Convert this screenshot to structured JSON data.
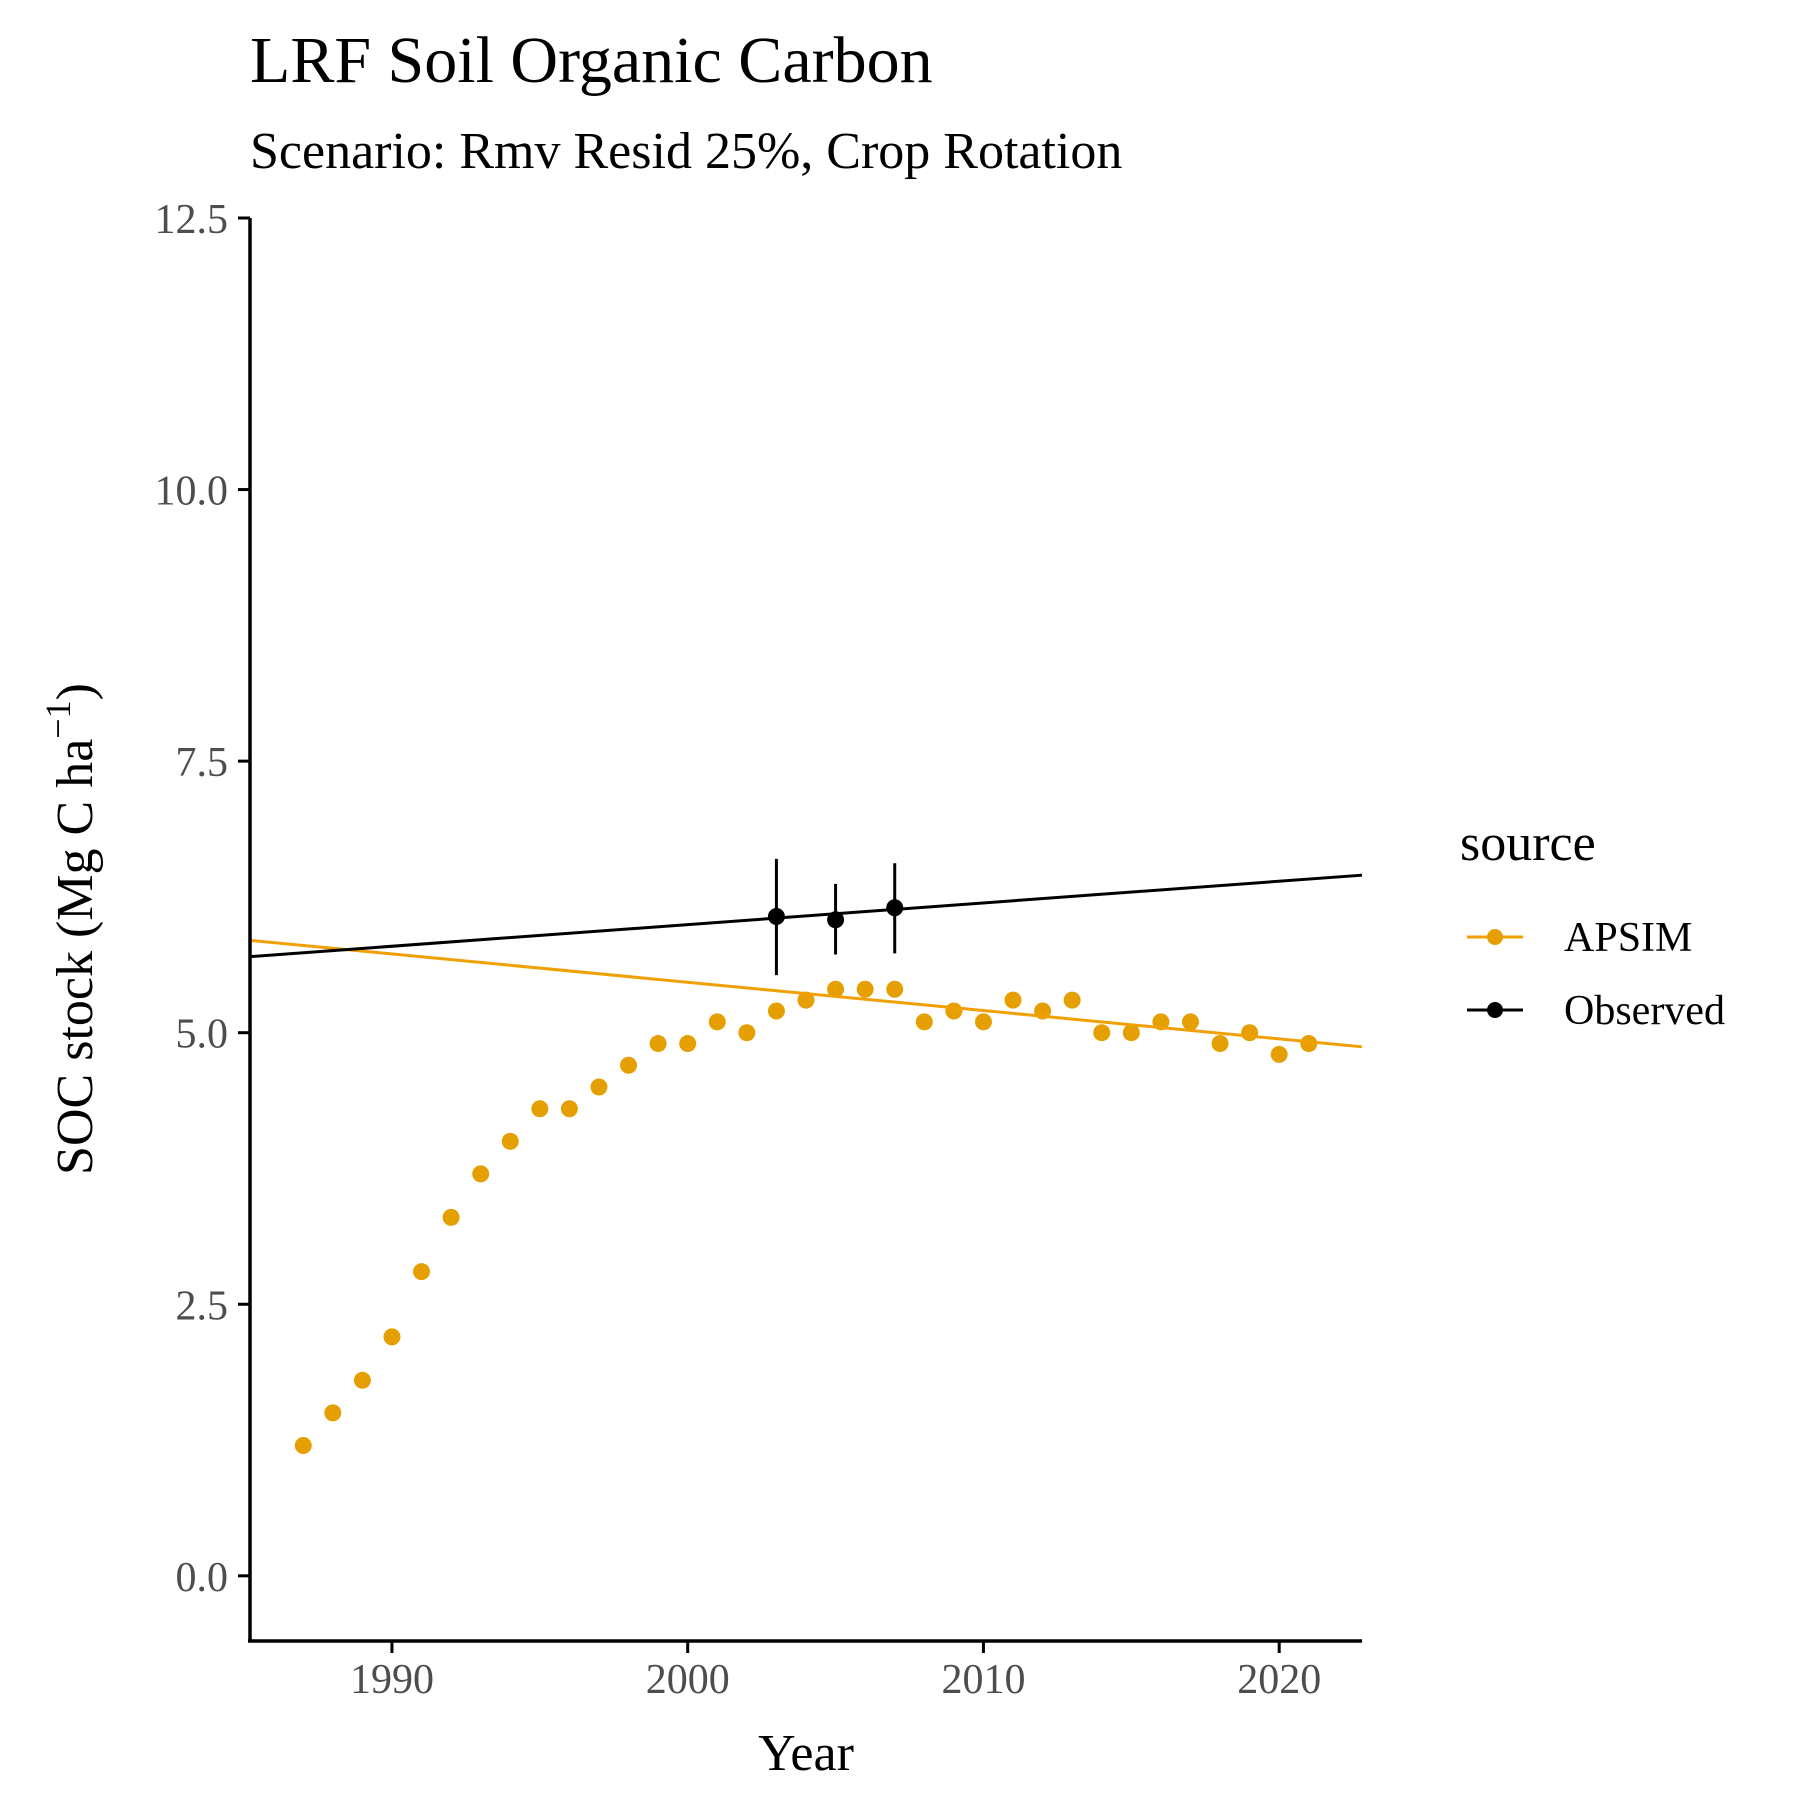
{
  "chart_data": {
    "type": "scatter",
    "title": "LRF Soil Organic Carbon",
    "subtitle": "Scenario: Rmv Resid 25%, Crop Rotation",
    "xlabel": "Year",
    "ylabel_main": "SOC stock (Mg C ha",
    "ylabel_sup": "−1",
    "ylabel_close": ")",
    "xlim": [
      1985.2,
      2022.8
    ],
    "ylim": [
      -0.6,
      12.5
    ],
    "x_ticks": [
      1990,
      2000,
      2010,
      2020
    ],
    "x_tick_labels": [
      "1990",
      "2000",
      "2010",
      "2020"
    ],
    "y_ticks": [
      0,
      2.5,
      5,
      7.5,
      10,
      12.5
    ],
    "y_tick_labels": [
      "0.0",
      "2.5",
      "5.0",
      "7.5",
      "10.0",
      "12.5"
    ],
    "grid": false,
    "legend": {
      "title": "source",
      "position": "right",
      "entries": [
        "APSIM",
        "Observed"
      ]
    },
    "series": [
      {
        "name": "APSIM",
        "color": "#E69F00",
        "trend_color": "#F0A000",
        "x": [
          1987,
          1988,
          1989,
          1990,
          1991,
          1992,
          1993,
          1994,
          1995,
          1996,
          1997,
          1998,
          1999,
          2000,
          2001,
          2002,
          2003,
          2004,
          2005,
          2006,
          2007,
          2008,
          2009,
          2010,
          2011,
          2012,
          2013,
          2014,
          2015,
          2016,
          2017,
          2018,
          2019,
          2020,
          2021
        ],
        "y": [
          1.2,
          1.5,
          1.8,
          2.2,
          2.8,
          3.3,
          3.7,
          4.0,
          4.3,
          4.3,
          4.5,
          4.7,
          4.9,
          4.9,
          5.1,
          5.0,
          5.2,
          5.3,
          5.4,
          5.4,
          5.4,
          5.1,
          5.2,
          5.1,
          5.3,
          5.2,
          5.3,
          5.0,
          5.0,
          5.1,
          5.1,
          4.9,
          5.0,
          4.8,
          4.9
        ],
        "trend": {
          "x": [
            1985.2,
            2022.8
          ],
          "y": [
            5.85,
            4.87
          ]
        }
      },
      {
        "name": "Observed",
        "color": "#000000",
        "x": [
          2003,
          2005,
          2007
        ],
        "y": [
          6.07,
          6.04,
          6.15
        ],
        "ymin": [
          5.53,
          5.72,
          5.73
        ],
        "ymax": [
          6.6,
          6.37,
          6.56
        ],
        "trend": {
          "x": [
            1985.2,
            2022.8
          ],
          "y": [
            5.7,
            6.45
          ]
        }
      }
    ]
  }
}
